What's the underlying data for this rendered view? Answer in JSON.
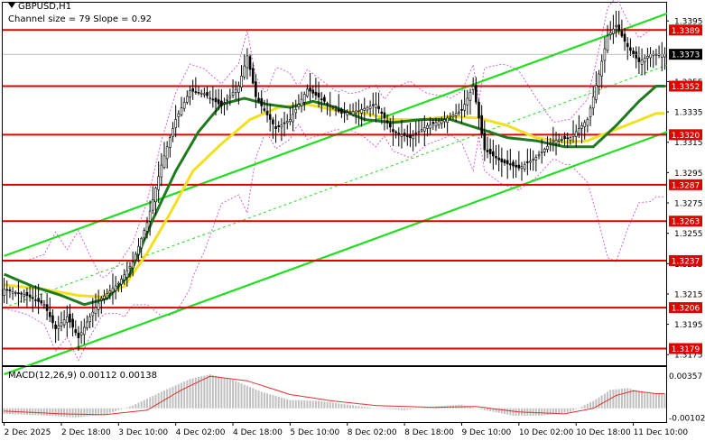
{
  "symbol_line": "GBPUSD,H1",
  "channel_line": "Channel size = 79 Slope = 0.92",
  "macd_line": "MACD(12,26,9) 0.00112 0.00138",
  "current_price": "1.3373",
  "colors": {
    "level_line": "#e00000",
    "level_label_bg": "#e00000",
    "current_label_bg": "#000000",
    "channel": "#22dd22",
    "candle": "#000000",
    "sma_fast": "#1f7a1f",
    "sma_slow": "#f0e020",
    "bollinger": "#cc66cc",
    "macd_hist": "#c0c0c0",
    "macd_signal": "#e03030"
  },
  "chart_data": {
    "type": "candlestick",
    "symbol": "GBPUSD",
    "timeframe": "H1",
    "ylim": [
      1.3168,
      1.3407
    ],
    "price_ticks": [
      "1.3395",
      "1.3373",
      "1.3355",
      "1.3335",
      "1.3315",
      "1.3295",
      "1.3275",
      "1.3255",
      "1.3235",
      "1.3215",
      "1.3195",
      "1.3175"
    ],
    "levels": [
      "1.3389",
      "1.3352",
      "1.3320",
      "1.3287",
      "1.3263",
      "1.3237",
      "1.3206",
      "1.3179"
    ],
    "x_labels": [
      "2 Dec 2025",
      "2 Dec 18:00",
      "3 Dec 10:00",
      "4 Dec 02:00",
      "4 Dec 18:00",
      "5 Dec 10:00",
      "8 Dec 02:00",
      "8 Dec 18:00",
      "9 Dec 10:00",
      "10 Dec 02:00",
      "10 Dec 18:00",
      "11 Dec 10:00"
    ],
    "close_path": [
      {
        "i": 0,
        "c": 1.3218
      },
      {
        "i": 8,
        "c": 1.3214
      },
      {
        "i": 14,
        "c": 1.3208
      },
      {
        "i": 18,
        "c": 1.3192
      },
      {
        "i": 22,
        "c": 1.32
      },
      {
        "i": 26,
        "c": 1.3186
      },
      {
        "i": 30,
        "c": 1.32
      },
      {
        "i": 34,
        "c": 1.3212
      },
      {
        "i": 40,
        "c": 1.3222
      },
      {
        "i": 45,
        "c": 1.3236
      },
      {
        "i": 50,
        "c": 1.3262
      },
      {
        "i": 55,
        "c": 1.33
      },
      {
        "i": 60,
        "c": 1.333
      },
      {
        "i": 65,
        "c": 1.3349
      },
      {
        "i": 70,
        "c": 1.3347
      },
      {
        "i": 76,
        "c": 1.3339
      },
      {
        "i": 82,
        "c": 1.3352
      },
      {
        "i": 85,
        "c": 1.3372
      },
      {
        "i": 88,
        "c": 1.3345
      },
      {
        "i": 95,
        "c": 1.3324
      },
      {
        "i": 100,
        "c": 1.333
      },
      {
        "i": 106,
        "c": 1.335
      },
      {
        "i": 112,
        "c": 1.3342
      },
      {
        "i": 118,
        "c": 1.3334
      },
      {
        "i": 124,
        "c": 1.3336
      },
      {
        "i": 130,
        "c": 1.334
      },
      {
        "i": 136,
        "c": 1.3322
      },
      {
        "i": 142,
        "c": 1.3318
      },
      {
        "i": 148,
        "c": 1.3326
      },
      {
        "i": 154,
        "c": 1.333
      },
      {
        "i": 160,
        "c": 1.3336
      },
      {
        "i": 164,
        "c": 1.3352
      },
      {
        "i": 168,
        "c": 1.331
      },
      {
        "i": 174,
        "c": 1.3302
      },
      {
        "i": 180,
        "c": 1.3298
      },
      {
        "i": 186,
        "c": 1.3305
      },
      {
        "i": 192,
        "c": 1.3316
      },
      {
        "i": 198,
        "c": 1.3318
      },
      {
        "i": 204,
        "c": 1.333
      },
      {
        "i": 208,
        "c": 1.336
      },
      {
        "i": 211,
        "c": 1.3385
      },
      {
        "i": 214,
        "c": 1.3392
      },
      {
        "i": 218,
        "c": 1.3378
      },
      {
        "i": 222,
        "c": 1.3368
      },
      {
        "i": 226,
        "c": 1.3373
      }
    ],
    "sma_slow_path": [
      {
        "i": 0,
        "v": 1.3221
      },
      {
        "i": 14,
        "v": 1.3218
      },
      {
        "i": 26,
        "v": 1.3214
      },
      {
        "i": 34,
        "v": 1.3213
      },
      {
        "i": 42,
        "v": 1.322
      },
      {
        "i": 50,
        "v": 1.3242
      },
      {
        "i": 58,
        "v": 1.3268
      },
      {
        "i": 66,
        "v": 1.3296
      },
      {
        "i": 76,
        "v": 1.3314
      },
      {
        "i": 86,
        "v": 1.333
      },
      {
        "i": 96,
        "v": 1.3338
      },
      {
        "i": 106,
        "v": 1.334
      },
      {
        "i": 116,
        "v": 1.3336
      },
      {
        "i": 126,
        "v": 1.3334
      },
      {
        "i": 136,
        "v": 1.333
      },
      {
        "i": 146,
        "v": 1.333
      },
      {
        "i": 156,
        "v": 1.3332
      },
      {
        "i": 166,
        "v": 1.3331
      },
      {
        "i": 176,
        "v": 1.3326
      },
      {
        "i": 186,
        "v": 1.3318
      },
      {
        "i": 196,
        "v": 1.3315
      },
      {
        "i": 204,
        "v": 1.3316
      },
      {
        "i": 212,
        "v": 1.3322
      },
      {
        "i": 220,
        "v": 1.3328
      },
      {
        "i": 228,
        "v": 1.3334
      }
    ],
    "sma_fast_path": [
      {
        "i": 0,
        "v": 1.3228
      },
      {
        "i": 10,
        "v": 1.322
      },
      {
        "i": 20,
        "v": 1.3214
      },
      {
        "i": 28,
        "v": 1.3208
      },
      {
        "i": 36,
        "v": 1.3212
      },
      {
        "i": 44,
        "v": 1.3228
      },
      {
        "i": 52,
        "v": 1.3264
      },
      {
        "i": 60,
        "v": 1.3296
      },
      {
        "i": 68,
        "v": 1.3322
      },
      {
        "i": 76,
        "v": 1.334
      },
      {
        "i": 84,
        "v": 1.3344
      },
      {
        "i": 92,
        "v": 1.334
      },
      {
        "i": 100,
        "v": 1.3338
      },
      {
        "i": 108,
        "v": 1.3342
      },
      {
        "i": 116,
        "v": 1.3338
      },
      {
        "i": 126,
        "v": 1.333
      },
      {
        "i": 136,
        "v": 1.3328
      },
      {
        "i": 146,
        "v": 1.333
      },
      {
        "i": 156,
        "v": 1.333
      },
      {
        "i": 166,
        "v": 1.3324
      },
      {
        "i": 176,
        "v": 1.3318
      },
      {
        "i": 186,
        "v": 1.3316
      },
      {
        "i": 196,
        "v": 1.3312
      },
      {
        "i": 206,
        "v": 1.3312
      },
      {
        "i": 214,
        "v": 1.3326
      },
      {
        "i": 222,
        "v": 1.3342
      },
      {
        "i": 228,
        "v": 1.3352
      }
    ],
    "channel_lines": [
      {
        "name": "upper",
        "from": {
          "i": 0,
          "v": 1.324
        },
        "to": {
          "i": 232,
          "v": 1.34
        }
      },
      {
        "name": "mid",
        "from": {
          "i": 0,
          "v": 1.3206
        },
        "to": {
          "i": 232,
          "v": 1.3366
        }
      },
      {
        "name": "lower",
        "from": {
          "i": 0,
          "v": 1.3162
        },
        "to": {
          "i": 232,
          "v": 1.3322
        }
      }
    ],
    "macd": {
      "label": "MACD(12,26,9)",
      "main": 0.00112,
      "signal": 0.00138,
      "ylim": [
        -0.0015,
        0.0045
      ],
      "ticks": [
        "0.00357",
        "-0.00102"
      ],
      "hist_path": [
        {
          "i": 0,
          "v": -0.0006
        },
        {
          "i": 15,
          "v": -0.0008
        },
        {
          "i": 25,
          "v": -0.001
        },
        {
          "i": 35,
          "v": -0.0007
        },
        {
          "i": 45,
          "v": 0.0003
        },
        {
          "i": 55,
          "v": 0.0018
        },
        {
          "i": 65,
          "v": 0.0032
        },
        {
          "i": 72,
          "v": 0.0037
        },
        {
          "i": 80,
          "v": 0.0031
        },
        {
          "i": 90,
          "v": 0.0018
        },
        {
          "i": 100,
          "v": 0.0009
        },
        {
          "i": 110,
          "v": 0.0008
        },
        {
          "i": 120,
          "v": 0.0004
        },
        {
          "i": 130,
          "v": 0.0
        },
        {
          "i": 140,
          "v": -0.0002
        },
        {
          "i": 150,
          "v": 0.0002
        },
        {
          "i": 160,
          "v": 0.0004
        },
        {
          "i": 168,
          "v": -0.0002
        },
        {
          "i": 178,
          "v": -0.0008
        },
        {
          "i": 188,
          "v": -0.0008
        },
        {
          "i": 198,
          "v": -0.0004
        },
        {
          "i": 206,
          "v": 0.0008
        },
        {
          "i": 212,
          "v": 0.002
        },
        {
          "i": 218,
          "v": 0.0022
        },
        {
          "i": 226,
          "v": 0.0016
        }
      ],
      "signal_path": [
        {
          "i": 0,
          "v": -0.0003
        },
        {
          "i": 20,
          "v": -0.0006
        },
        {
          "i": 35,
          "v": -0.0007
        },
        {
          "i": 50,
          "v": -0.0002
        },
        {
          "i": 62,
          "v": 0.002
        },
        {
          "i": 72,
          "v": 0.0035
        },
        {
          "i": 85,
          "v": 0.003
        },
        {
          "i": 100,
          "v": 0.0015
        },
        {
          "i": 115,
          "v": 0.0008
        },
        {
          "i": 130,
          "v": 0.0003
        },
        {
          "i": 150,
          "v": 0.0001
        },
        {
          "i": 165,
          "v": 0.0002
        },
        {
          "i": 180,
          "v": -0.0004
        },
        {
          "i": 196,
          "v": -0.0006
        },
        {
          "i": 206,
          "v": 0.0
        },
        {
          "i": 214,
          "v": 0.0014
        },
        {
          "i": 220,
          "v": 0.0019
        },
        {
          "i": 228,
          "v": 0.0016
        }
      ]
    }
  }
}
